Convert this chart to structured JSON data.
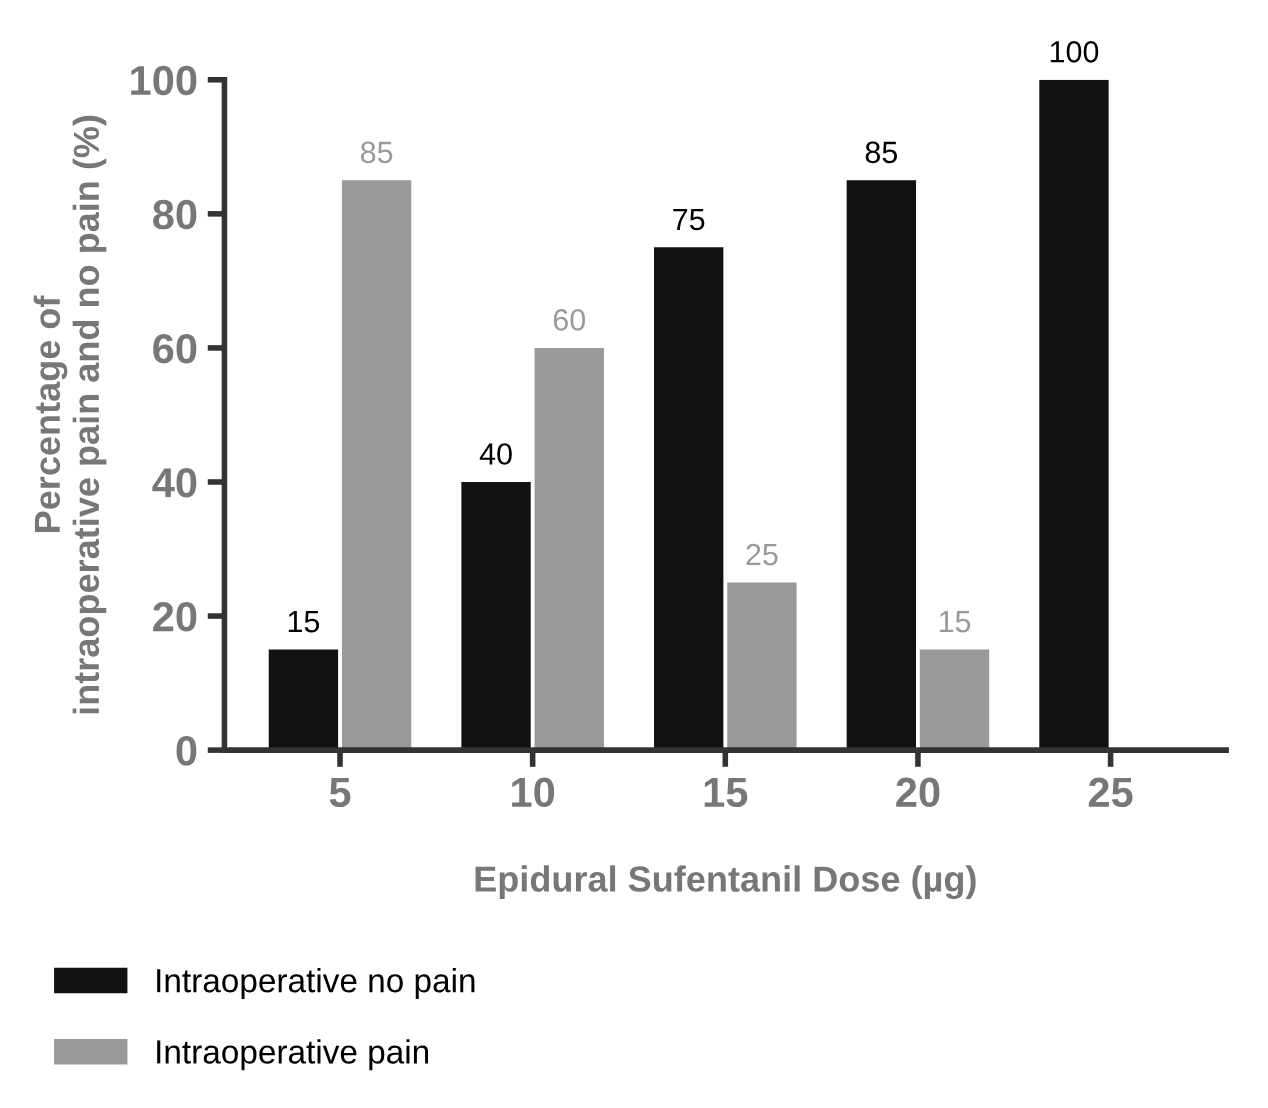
{
  "chart_data": {
    "type": "bar",
    "xlabel": "Epidural Sufentanil Dose (µg)",
    "ylabel": "Percentage of\nintraoperative pain and no pain (%)",
    "categories": [
      "5",
      "10",
      "15",
      "20",
      "25"
    ],
    "series": [
      {
        "name": "Intraoperative no pain",
        "color": "#111111",
        "values": [
          15,
          40,
          75,
          85,
          100
        ],
        "value_labels": [
          "15",
          "40",
          "75",
          "85",
          "100"
        ]
      },
      {
        "name": "Intraoperative pain",
        "color": "#999999",
        "values": [
          85,
          60,
          25,
          15,
          0
        ],
        "value_labels": [
          "85",
          "60",
          "25",
          "15",
          null
        ]
      }
    ],
    "ylim": [
      0,
      100
    ],
    "yticks": [
      0,
      20,
      40,
      60,
      80,
      100
    ],
    "grid": false,
    "legend": "bottom"
  }
}
